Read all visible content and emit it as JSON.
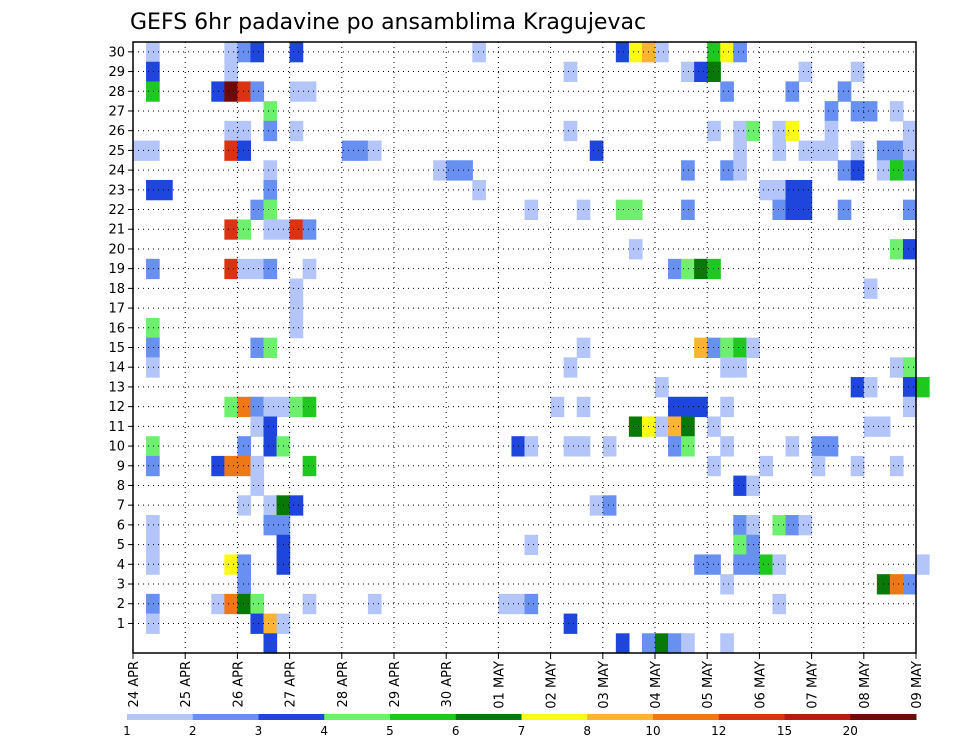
{
  "chart_data": {
    "type": "heatmap",
    "title": "GEFS 6hr padavine po ansamblima Kragujevac",
    "xlabel": "",
    "ylabel": "",
    "x_tick_labels": [
      "24 APR",
      "25 APR",
      "26 APR",
      "27 APR",
      "28 APR",
      "29 APR",
      "30 APR",
      "01 MAY",
      "02 MAY",
      "03 MAY",
      "04 MAY",
      "05 MAY",
      "06 MAY",
      "07 MAY",
      "08 MAY",
      "09 MAY"
    ],
    "y_tick_labels": [
      "1",
      "2",
      "3",
      "4",
      "5",
      "6",
      "7",
      "8",
      "9",
      "10",
      "11",
      "12",
      "13",
      "14",
      "15",
      "16",
      "17",
      "18",
      "19",
      "20",
      "21",
      "22",
      "23",
      "24",
      "25",
      "26",
      "27",
      "28",
      "29",
      "30"
    ],
    "x_steps_per_day": 4,
    "n_steps": 61,
    "y_range": [
      0,
      30
    ],
    "grid": true,
    "legend": {
      "position": "bottom",
      "levels": [
        "1",
        "2",
        "3",
        "4",
        "5",
        "6",
        "7",
        "8",
        "10",
        "12",
        "15",
        "20"
      ],
      "colors": [
        "#b4c6f9",
        "#6890f0",
        "#1e46dc",
        "#6ef06e",
        "#1ec81e",
        "#087808",
        "#fafa14",
        "#fab432",
        "#f07814",
        "#dc3214",
        "#b41e0a",
        "#6e0a0a"
      ]
    },
    "cells": [
      [
        1,
        30,
        0
      ],
      [
        7,
        30,
        0
      ],
      [
        8,
        30,
        1
      ],
      [
        9,
        30,
        2
      ],
      [
        12,
        30,
        2
      ],
      [
        26,
        30,
        0
      ],
      [
        37,
        30,
        2
      ],
      [
        38,
        30,
        6
      ],
      [
        39,
        30,
        7
      ],
      [
        40,
        30,
        0
      ],
      [
        44,
        30,
        4
      ],
      [
        45,
        30,
        6
      ],
      [
        46,
        30,
        1
      ],
      [
        1,
        29,
        2
      ],
      [
        7,
        29,
        0
      ],
      [
        33,
        29,
        0
      ],
      [
        42,
        29,
        0
      ],
      [
        43,
        29,
        2
      ],
      [
        44,
        29,
        5
      ],
      [
        51,
        29,
        0
      ],
      [
        55,
        29,
        0
      ],
      [
        1,
        28,
        4
      ],
      [
        6,
        28,
        2
      ],
      [
        7,
        28,
        11
      ],
      [
        8,
        28,
        9
      ],
      [
        9,
        28,
        1
      ],
      [
        12,
        28,
        0
      ],
      [
        13,
        28,
        0
      ],
      [
        45,
        28,
        1
      ],
      [
        50,
        28,
        1
      ],
      [
        54,
        28,
        1
      ],
      [
        10,
        27,
        3
      ],
      [
        53,
        27,
        1
      ],
      [
        55,
        27,
        1
      ],
      [
        56,
        27,
        1
      ],
      [
        58,
        27,
        0
      ],
      [
        7,
        26,
        0
      ],
      [
        8,
        26,
        0
      ],
      [
        10,
        26,
        1
      ],
      [
        12,
        26,
        0
      ],
      [
        33,
        26,
        0
      ],
      [
        44,
        26,
        0
      ],
      [
        46,
        26,
        0
      ],
      [
        47,
        26,
        3
      ],
      [
        49,
        26,
        0
      ],
      [
        50,
        26,
        6
      ],
      [
        53,
        26,
        0
      ],
      [
        59,
        26,
        0
      ],
      [
        0,
        25,
        0
      ],
      [
        1,
        25,
        0
      ],
      [
        7,
        25,
        9
      ],
      [
        8,
        25,
        2
      ],
      [
        16,
        25,
        1
      ],
      [
        17,
        25,
        1
      ],
      [
        18,
        25,
        0
      ],
      [
        35,
        25,
        2
      ],
      [
        46,
        25,
        0
      ],
      [
        49,
        25,
        0
      ],
      [
        51,
        25,
        0
      ],
      [
        52,
        25,
        0
      ],
      [
        53,
        25,
        0
      ],
      [
        55,
        25,
        0
      ],
      [
        57,
        25,
        1
      ],
      [
        58,
        25,
        1
      ],
      [
        59,
        25,
        0
      ],
      [
        10,
        24,
        0
      ],
      [
        23,
        24,
        0
      ],
      [
        24,
        24,
        1
      ],
      [
        25,
        24,
        1
      ],
      [
        42,
        24,
        1
      ],
      [
        45,
        24,
        1
      ],
      [
        46,
        24,
        0
      ],
      [
        54,
        24,
        1
      ],
      [
        55,
        24,
        2
      ],
      [
        57,
        24,
        0
      ],
      [
        58,
        24,
        4
      ],
      [
        59,
        24,
        1
      ],
      [
        1,
        23,
        2
      ],
      [
        2,
        23,
        2
      ],
      [
        10,
        23,
        1
      ],
      [
        26,
        23,
        0
      ],
      [
        48,
        23,
        0
      ],
      [
        49,
        23,
        0
      ],
      [
        50,
        23,
        2
      ],
      [
        51,
        23,
        2
      ],
      [
        9,
        22,
        1
      ],
      [
        10,
        22,
        3
      ],
      [
        30,
        22,
        0
      ],
      [
        34,
        22,
        0
      ],
      [
        37,
        22,
        3
      ],
      [
        38,
        22,
        3
      ],
      [
        42,
        22,
        1
      ],
      [
        49,
        22,
        1
      ],
      [
        50,
        22,
        2
      ],
      [
        51,
        22,
        2
      ],
      [
        54,
        22,
        1
      ],
      [
        59,
        22,
        1
      ],
      [
        7,
        21,
        9
      ],
      [
        8,
        21,
        3
      ],
      [
        10,
        21,
        0
      ],
      [
        11,
        21,
        0
      ],
      [
        12,
        21,
        9
      ],
      [
        13,
        21,
        1
      ],
      [
        38,
        20,
        0
      ],
      [
        58,
        20,
        3
      ],
      [
        59,
        20,
        2
      ],
      [
        1,
        19,
        1
      ],
      [
        7,
        19,
        9
      ],
      [
        8,
        19,
        0
      ],
      [
        9,
        19,
        0
      ],
      [
        10,
        19,
        1
      ],
      [
        13,
        19,
        0
      ],
      [
        41,
        19,
        1
      ],
      [
        42,
        19,
        3
      ],
      [
        43,
        19,
        5
      ],
      [
        44,
        19,
        4
      ],
      [
        12,
        18,
        0
      ],
      [
        56,
        18,
        0
      ],
      [
        12,
        17,
        0
      ],
      [
        1,
        16,
        3
      ],
      [
        12,
        16,
        0
      ],
      [
        1,
        15,
        1
      ],
      [
        9,
        15,
        1
      ],
      [
        10,
        15,
        3
      ],
      [
        34,
        15,
        0
      ],
      [
        43,
        15,
        7
      ],
      [
        44,
        15,
        1
      ],
      [
        45,
        15,
        3
      ],
      [
        46,
        15,
        4
      ],
      [
        47,
        15,
        0
      ],
      [
        1,
        14,
        0
      ],
      [
        33,
        14,
        0
      ],
      [
        45,
        14,
        0
      ],
      [
        46,
        14,
        0
      ],
      [
        58,
        14,
        0
      ],
      [
        59,
        14,
        3
      ],
      [
        40,
        13,
        0
      ],
      [
        55,
        13,
        2
      ],
      [
        56,
        13,
        0
      ],
      [
        59,
        13,
        2
      ],
      [
        60,
        13,
        4
      ],
      [
        7,
        12,
        3
      ],
      [
        8,
        12,
        8
      ],
      [
        9,
        12,
        1
      ],
      [
        10,
        12,
        0
      ],
      [
        11,
        12,
        0
      ],
      [
        12,
        12,
        3
      ],
      [
        13,
        12,
        4
      ],
      [
        32,
        12,
        0
      ],
      [
        34,
        12,
        0
      ],
      [
        41,
        12,
        2
      ],
      [
        42,
        12,
        2
      ],
      [
        43,
        12,
        2
      ],
      [
        45,
        12,
        0
      ],
      [
        59,
        12,
        0
      ],
      [
        9,
        11,
        0
      ],
      [
        10,
        11,
        2
      ],
      [
        38,
        11,
        5
      ],
      [
        39,
        11,
        6
      ],
      [
        40,
        11,
        0
      ],
      [
        41,
        11,
        7
      ],
      [
        42,
        11,
        5
      ],
      [
        44,
        11,
        0
      ],
      [
        56,
        11,
        0
      ],
      [
        57,
        11,
        0
      ],
      [
        1,
        10,
        3
      ],
      [
        8,
        10,
        1
      ],
      [
        10,
        10,
        2
      ],
      [
        11,
        10,
        3
      ],
      [
        29,
        10,
        2
      ],
      [
        30,
        10,
        0
      ],
      [
        33,
        10,
        0
      ],
      [
        34,
        10,
        0
      ],
      [
        36,
        10,
        0
      ],
      [
        41,
        10,
        1
      ],
      [
        42,
        10,
        3
      ],
      [
        45,
        10,
        0
      ],
      [
        50,
        10,
        0
      ],
      [
        52,
        10,
        1
      ],
      [
        53,
        10,
        1
      ],
      [
        1,
        9,
        1
      ],
      [
        6,
        9,
        2
      ],
      [
        7,
        9,
        8
      ],
      [
        8,
        9,
        8
      ],
      [
        9,
        9,
        0
      ],
      [
        13,
        9,
        4
      ],
      [
        44,
        9,
        0
      ],
      [
        48,
        9,
        0
      ],
      [
        52,
        9,
        0
      ],
      [
        55,
        9,
        0
      ],
      [
        58,
        9,
        0
      ],
      [
        9,
        8,
        0
      ],
      [
        46,
        8,
        2
      ],
      [
        47,
        8,
        0
      ],
      [
        8,
        7,
        0
      ],
      [
        10,
        7,
        0
      ],
      [
        11,
        7,
        5
      ],
      [
        12,
        7,
        2
      ],
      [
        35,
        7,
        0
      ],
      [
        36,
        7,
        1
      ],
      [
        1,
        6,
        0
      ],
      [
        10,
        6,
        1
      ],
      [
        11,
        6,
        1
      ],
      [
        46,
        6,
        1
      ],
      [
        47,
        6,
        0
      ],
      [
        49,
        6,
        3
      ],
      [
        50,
        6,
        1
      ],
      [
        51,
        6,
        0
      ],
      [
        1,
        5,
        0
      ],
      [
        11,
        5,
        2
      ],
      [
        30,
        5,
        0
      ],
      [
        46,
        5,
        3
      ],
      [
        47,
        5,
        1
      ],
      [
        1,
        4,
        0
      ],
      [
        7,
        4,
        6
      ],
      [
        8,
        4,
        1
      ],
      [
        11,
        4,
        2
      ],
      [
        43,
        4,
        1
      ],
      [
        44,
        4,
        1
      ],
      [
        46,
        4,
        1
      ],
      [
        47,
        4,
        1
      ],
      [
        48,
        4,
        4
      ],
      [
        49,
        4,
        0
      ],
      [
        60,
        4,
        0
      ],
      [
        8,
        3,
        1
      ],
      [
        45,
        3,
        0
      ],
      [
        57,
        3,
        5
      ],
      [
        58,
        3,
        8
      ],
      [
        59,
        3,
        1
      ],
      [
        1,
        2,
        1
      ],
      [
        6,
        2,
        0
      ],
      [
        7,
        2,
        8
      ],
      [
        8,
        2,
        5
      ],
      [
        9,
        2,
        3
      ],
      [
        13,
        2,
        0
      ],
      [
        18,
        2,
        0
      ],
      [
        28,
        2,
        0
      ],
      [
        29,
        2,
        0
      ],
      [
        30,
        2,
        1
      ],
      [
        49,
        2,
        0
      ],
      [
        1,
        1,
        0
      ],
      [
        9,
        1,
        2
      ],
      [
        10,
        1,
        7
      ],
      [
        11,
        1,
        0
      ],
      [
        33,
        1,
        2
      ],
      [
        10,
        0,
        2
      ],
      [
        37,
        0,
        2
      ],
      [
        39,
        0,
        1
      ],
      [
        40,
        0,
        5
      ],
      [
        41,
        0,
        1
      ],
      [
        42,
        0,
        0
      ],
      [
        45,
        0,
        0
      ]
    ]
  }
}
